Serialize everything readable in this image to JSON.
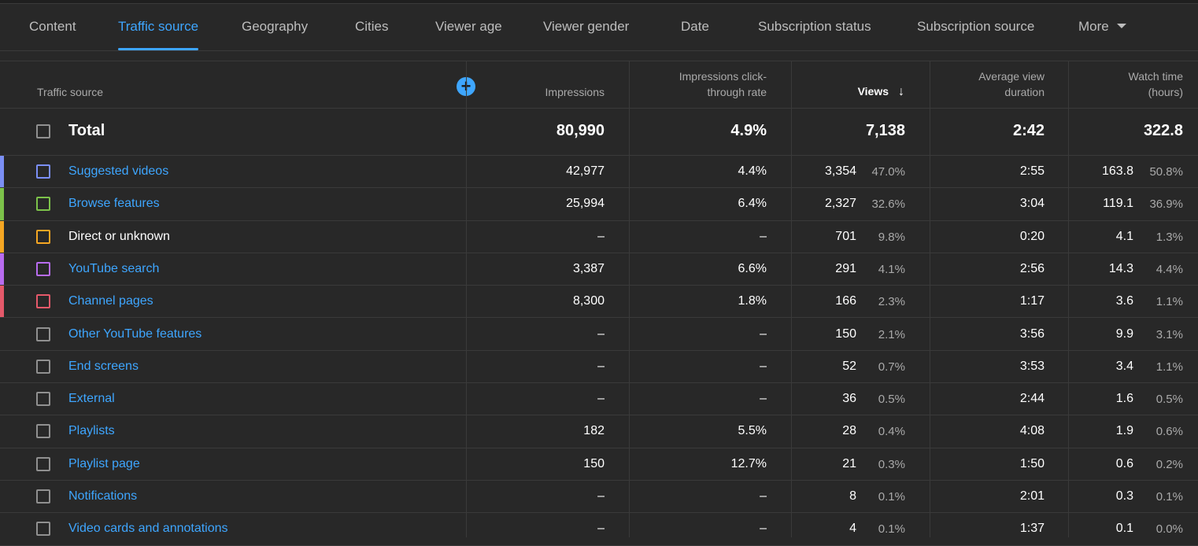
{
  "tabs": [
    {
      "label": "Content",
      "active": false
    },
    {
      "label": "Traffic source",
      "active": true
    },
    {
      "label": "Geography",
      "active": false
    },
    {
      "label": "Cities",
      "active": false
    },
    {
      "label": "Viewer age",
      "active": false
    },
    {
      "label": "Viewer gender",
      "active": false
    },
    {
      "label": "Date",
      "active": false
    },
    {
      "label": "Subscription status",
      "active": false
    },
    {
      "label": "Subscription source",
      "active": false
    },
    {
      "label": "More",
      "active": false
    }
  ],
  "columns": {
    "source": "Traffic source",
    "impressions": "Impressions",
    "ctr": "Impressions click-\nthrough rate",
    "views": "Views",
    "avg_duration": "Average view\nduration",
    "watch_time": "Watch time\n(hours)"
  },
  "add_icon": "plus-icon",
  "sort_icon": "arrow-down-icon",
  "total": {
    "label": "Total",
    "impressions": "80,990",
    "ctr": "4.9%",
    "views": "7,138",
    "avg_duration": "2:42",
    "watch_time": "322.8"
  },
  "rows": [
    {
      "name": "Suggested videos",
      "link": true,
      "color": "#7b8ff5",
      "impressions": "42,977",
      "ctr": "4.4%",
      "views": "3,354",
      "views_pct": "47.0%",
      "avg_duration": "2:55",
      "watch_time": "163.8",
      "watch_pct": "50.8%"
    },
    {
      "name": "Browse features",
      "link": true,
      "color": "#7cc24a",
      "impressions": "25,994",
      "ctr": "6.4%",
      "views": "2,327",
      "views_pct": "32.6%",
      "avg_duration": "3:04",
      "watch_time": "119.1",
      "watch_pct": "36.9%"
    },
    {
      "name": "Direct or unknown",
      "link": false,
      "color": "#f5a623",
      "impressions": "–",
      "ctr": "–",
      "views": "701",
      "views_pct": "9.8%",
      "avg_duration": "0:20",
      "watch_time": "4.1",
      "watch_pct": "1.3%"
    },
    {
      "name": "YouTube search",
      "link": true,
      "color": "#b86cf0",
      "impressions": "3,387",
      "ctr": "6.6%",
      "views": "291",
      "views_pct": "4.1%",
      "avg_duration": "2:56",
      "watch_time": "14.3",
      "watch_pct": "4.4%"
    },
    {
      "name": "Channel pages",
      "link": true,
      "color": "#e5596a",
      "impressions": "8,300",
      "ctr": "1.8%",
      "views": "166",
      "views_pct": "2.3%",
      "avg_duration": "1:17",
      "watch_time": "3.6",
      "watch_pct": "1.1%"
    },
    {
      "name": "Other YouTube features",
      "link": true,
      "color": "",
      "impressions": "–",
      "ctr": "–",
      "views": "150",
      "views_pct": "2.1%",
      "avg_duration": "3:56",
      "watch_time": "9.9",
      "watch_pct": "3.1%"
    },
    {
      "name": "End screens",
      "link": true,
      "color": "",
      "impressions": "–",
      "ctr": "–",
      "views": "52",
      "views_pct": "0.7%",
      "avg_duration": "3:53",
      "watch_time": "3.4",
      "watch_pct": "1.1%"
    },
    {
      "name": "External",
      "link": true,
      "color": "",
      "impressions": "–",
      "ctr": "–",
      "views": "36",
      "views_pct": "0.5%",
      "avg_duration": "2:44",
      "watch_time": "1.6",
      "watch_pct": "0.5%"
    },
    {
      "name": "Playlists",
      "link": true,
      "color": "",
      "impressions": "182",
      "ctr": "5.5%",
      "views": "28",
      "views_pct": "0.4%",
      "avg_duration": "4:08",
      "watch_time": "1.9",
      "watch_pct": "0.6%"
    },
    {
      "name": "Playlist page",
      "link": true,
      "color": "",
      "impressions": "150",
      "ctr": "12.7%",
      "views": "21",
      "views_pct": "0.3%",
      "avg_duration": "1:50",
      "watch_time": "0.6",
      "watch_pct": "0.2%"
    },
    {
      "name": "Notifications",
      "link": true,
      "color": "",
      "impressions": "–",
      "ctr": "–",
      "views": "8",
      "views_pct": "0.1%",
      "avg_duration": "2:01",
      "watch_time": "0.3",
      "watch_pct": "0.1%"
    },
    {
      "name": "Video cards and annotations",
      "link": true,
      "color": "",
      "impressions": "–",
      "ctr": "–",
      "views": "4",
      "views_pct": "0.1%",
      "avg_duration": "1:37",
      "watch_time": "0.1",
      "watch_pct": "0.0%"
    }
  ]
}
